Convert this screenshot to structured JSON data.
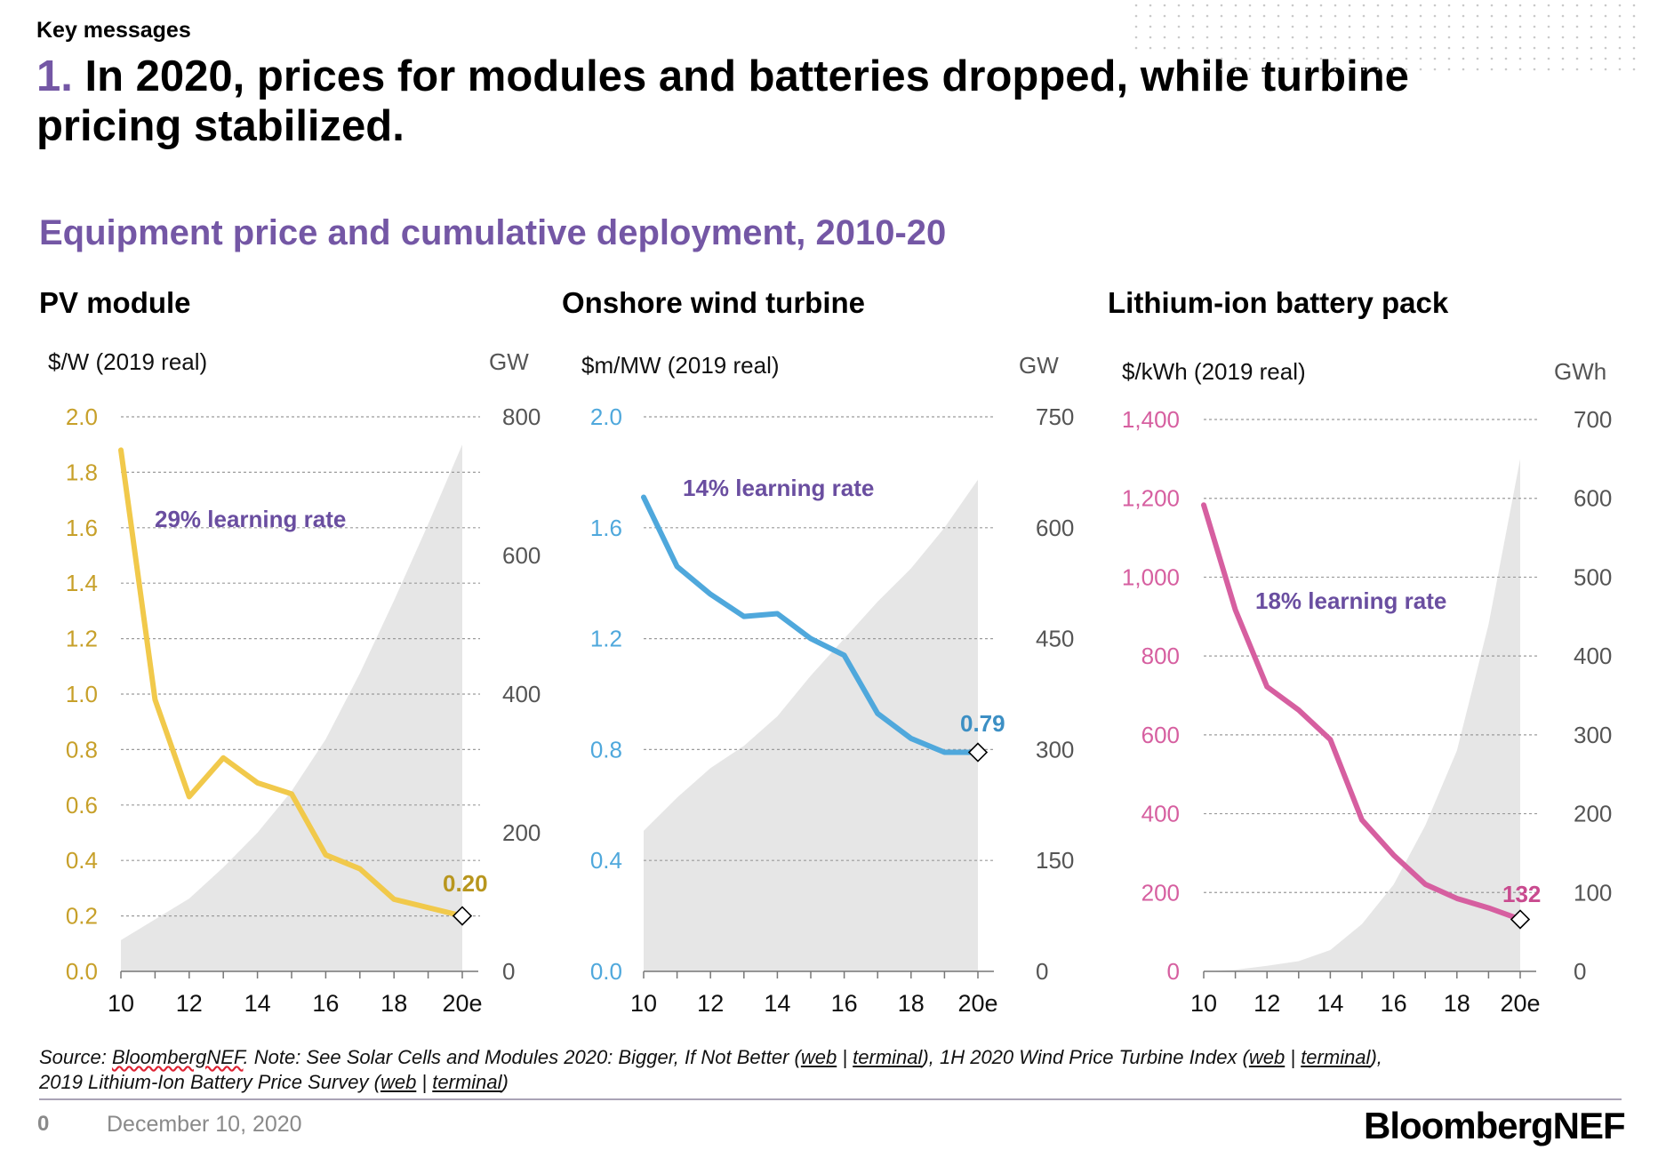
{
  "header": {
    "kicker": "Key messages",
    "headline_number": "1.",
    "headline_text": "In 2020, prices for modules and batteries dropped, while turbine pricing stabilized."
  },
  "section_title": "Equipment price and cumulative deployment, 2010-20",
  "chart_data": [
    {
      "type": "line",
      "title": "PV module",
      "ylabel": "$/W (2019 real)",
      "y2label": "GW",
      "x_labels": [
        "10",
        "12",
        "14",
        "16",
        "18",
        "20e"
      ],
      "x": [
        2010,
        2011,
        2012,
        2013,
        2014,
        2015,
        2016,
        2017,
        2018,
        2019,
        2020
      ],
      "ylim": [
        0,
        2.0
      ],
      "y_ticks": [
        "0.0",
        "0.2",
        "0.4",
        "0.6",
        "0.8",
        "1.0",
        "1.2",
        "1.4",
        "1.6",
        "1.8",
        "2.0"
      ],
      "y2lim": [
        0,
        800
      ],
      "y2_ticks": [
        "0",
        "200",
        "400",
        "600",
        "800"
      ],
      "series": [
        {
          "kind": "area",
          "axis": "y2",
          "values": [
            45,
            75,
            105,
            150,
            200,
            260,
            335,
            430,
            535,
            645,
            760
          ]
        },
        {
          "kind": "line",
          "axis": "y",
          "values": [
            1.88,
            0.98,
            0.63,
            0.77,
            0.68,
            0.64,
            0.42,
            0.37,
            0.26,
            0.23,
            0.2
          ]
        }
      ],
      "end_label": "0.20",
      "annotation": "29% learning rate",
      "colors": {
        "line": "#f1c94b",
        "axis": "#c7a02a",
        "label": "#b8961e",
        "area": "#e6e6e6"
      }
    },
    {
      "type": "line",
      "title": "Onshore wind turbine",
      "ylabel": "$m/MW (2019 real)",
      "y2label": "GW",
      "x_labels": [
        "10",
        "12",
        "14",
        "16",
        "18",
        "20e"
      ],
      "x": [
        2010,
        2011,
        2012,
        2013,
        2014,
        2015,
        2016,
        2017,
        2018,
        2019,
        2020
      ],
      "ylim": [
        0,
        2.0
      ],
      "y_ticks": [
        "0.0",
        "0.4",
        "0.8",
        "1.2",
        "1.6",
        "2.0"
      ],
      "y2lim": [
        0,
        750
      ],
      "y2_ticks": [
        "0",
        "150",
        "300",
        "450",
        "600",
        "750"
      ],
      "series": [
        {
          "kind": "area",
          "axis": "y2",
          "values": [
            190,
            235,
            275,
            305,
            345,
            400,
            450,
            500,
            545,
            600,
            665
          ]
        },
        {
          "kind": "line",
          "axis": "y",
          "values": [
            1.71,
            1.46,
            1.36,
            1.28,
            1.29,
            1.2,
            1.14,
            0.93,
            0.84,
            0.79,
            0.79
          ]
        }
      ],
      "end_label": "0.79",
      "annotation": "14% learning rate",
      "colors": {
        "line": "#4fa8dc",
        "axis": "#4fa8dc",
        "label": "#3c8fc4",
        "area": "#e6e6e6"
      }
    },
    {
      "type": "line",
      "title": "Lithium-ion battery pack",
      "ylabel": "$/kWh (2019 real)",
      "y2label": "GWh",
      "x_labels": [
        "10",
        "12",
        "14",
        "16",
        "18",
        "20e"
      ],
      "x": [
        2010,
        2011,
        2012,
        2013,
        2014,
        2015,
        2016,
        2017,
        2018,
        2019,
        2020
      ],
      "ylim": [
        0,
        1400
      ],
      "y_ticks": [
        "0",
        "200",
        "400",
        "600",
        "800",
        "1,000",
        "1,200",
        "1,400"
      ],
      "y2lim": [
        0,
        700
      ],
      "y2_ticks": [
        "0",
        "100",
        "200",
        "300",
        "400",
        "500",
        "600",
        "700"
      ],
      "series": [
        {
          "kind": "area",
          "axis": "y2",
          "values": [
            0,
            2,
            7,
            13,
            27,
            60,
            110,
            185,
            280,
            440,
            650
          ]
        },
        {
          "kind": "line",
          "axis": "y",
          "values": [
            1183,
            917,
            722,
            663,
            588,
            384,
            295,
            221,
            185,
            161,
            132
          ]
        }
      ],
      "end_label": "132",
      "annotation": "18% learning rate",
      "colors": {
        "line": "#d65fa0",
        "axis": "#d65fa0",
        "label": "#c94b8f",
        "area": "#e6e6e6"
      }
    }
  ],
  "footnote": {
    "source_label": "Source:",
    "source_name": "BloombergNEF",
    "note_text": ". Note: See Solar Cells and Modules 2020: Bigger, If Not Better (",
    "link_web": "web",
    "sep": " | ",
    "link_terminal": "terminal",
    "mid_text": "), 1H 2020 Wind Price Turbine Index (",
    "mid_close": "),",
    "line2_text": "2019 Lithium-Ion Battery Price Survey (",
    "end_text": ")"
  },
  "footer": {
    "page_number": "0",
    "date": "December 10, 2020",
    "brand": "BloombergNEF"
  }
}
